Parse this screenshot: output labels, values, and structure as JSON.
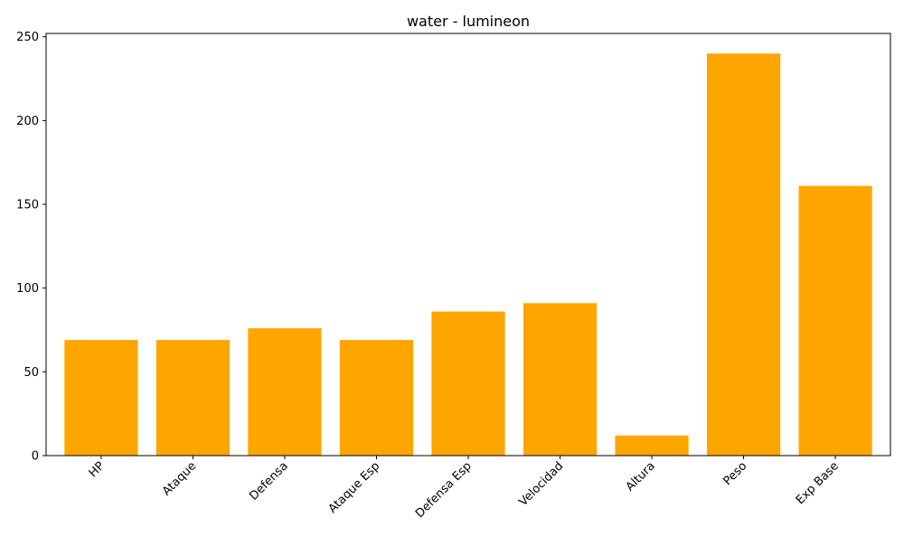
{
  "chart_data": {
    "type": "bar",
    "title": "water - lumineon",
    "xlabel": "",
    "ylabel": "",
    "categories": [
      "HP",
      "Ataque",
      "Defensa",
      "Ataque Esp",
      "Defensa Esp",
      "Velocidad",
      "Altura",
      "Peso",
      "Exp Base"
    ],
    "values": [
      69,
      69,
      76,
      69,
      86,
      91,
      12,
      240,
      161
    ],
    "ylim": [
      0,
      252
    ],
    "yticks": [
      0,
      50,
      100,
      150,
      200,
      250
    ],
    "bar_color": "#FFA500",
    "grid": false,
    "legend": "none",
    "xtick_rotation_deg": 45
  }
}
